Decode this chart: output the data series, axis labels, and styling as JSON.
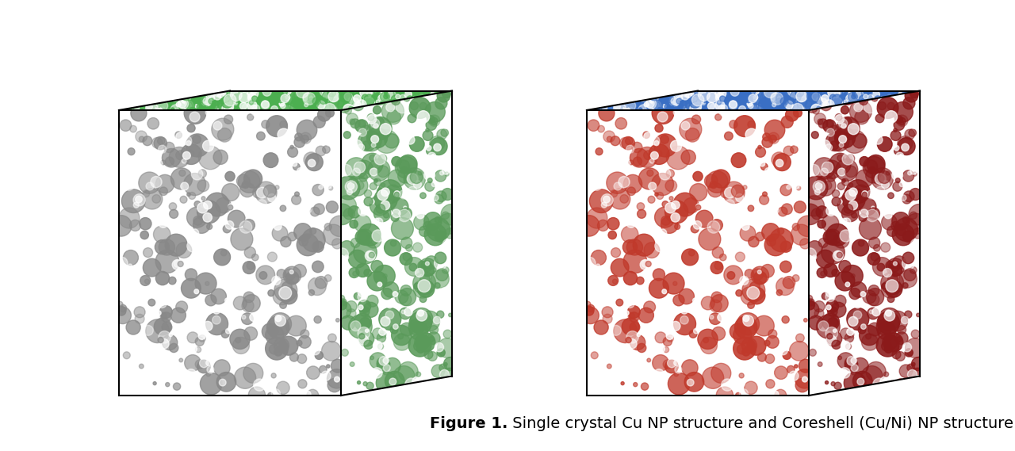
{
  "caption_bold": "Figure 1.",
  "caption_regular": " Single crystal Cu NP structure and Coreshell (Cu/Ni) NP structure",
  "caption_fontsize": 14,
  "bg_color": "#ffffff",
  "fig_width": 12.8,
  "fig_height": 5.69,
  "left_cube": {
    "top_color": "#4caf50",
    "front_left_color": "#888888",
    "front_right_color": "#5a9a5a",
    "noise_color1": "#222222",
    "noise_color2": "#4caf50"
  },
  "right_cube": {
    "top_color": "#3a6fc4",
    "front_left_color": "#c0392b",
    "front_right_color": "#8b1a1a",
    "noise_color1": "#3a6fc4",
    "noise_color2": "#c0392b"
  }
}
